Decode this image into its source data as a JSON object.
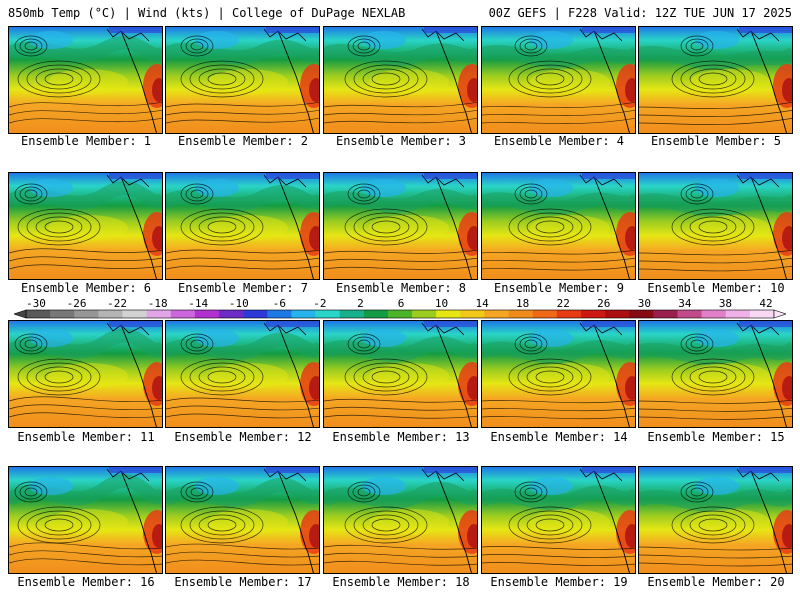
{
  "header": {
    "left": "850mb Temp (°C) | Wind (kts) | College of DuPage NEXLAB",
    "right": "00Z GEFS | F228 Valid: 12Z TUE JUN 17 2025"
  },
  "panels": [
    {
      "label": "Ensemble Member: 1"
    },
    {
      "label": "Ensemble Member: 2"
    },
    {
      "label": "Ensemble Member: 3"
    },
    {
      "label": "Ensemble Member: 4"
    },
    {
      "label": "Ensemble Member: 5"
    },
    {
      "label": "Ensemble Member: 6"
    },
    {
      "label": "Ensemble Member: 7"
    },
    {
      "label": "Ensemble Member: 8"
    },
    {
      "label": "Ensemble Member: 9"
    },
    {
      "label": "Ensemble Member: 10"
    },
    {
      "label": "Ensemble Member: 11"
    },
    {
      "label": "Ensemble Member: 12"
    },
    {
      "label": "Ensemble Member: 13"
    },
    {
      "label": "Ensemble Member: 14"
    },
    {
      "label": "Ensemble Member: 15"
    },
    {
      "label": "Ensemble Member: 16"
    },
    {
      "label": "Ensemble Member: 17"
    },
    {
      "label": "Ensemble Member: 18"
    },
    {
      "label": "Ensemble Member: 19"
    },
    {
      "label": "Ensemble Member: 20"
    }
  ],
  "colorbar": {
    "ticks": [
      "-30",
      "-26",
      "-22",
      "-18",
      "-14",
      "-10",
      "-6",
      "-2",
      "2",
      "6",
      "10",
      "14",
      "18",
      "22",
      "26",
      "30",
      "34",
      "38",
      "42"
    ],
    "colors": [
      "#5a5a5a",
      "#787878",
      "#969696",
      "#b4b4b4",
      "#d2d2d2",
      "#e2a6e8",
      "#cc66dd",
      "#b030d0",
      "#6a2bc6",
      "#2d3ad8",
      "#1e78e6",
      "#27b4ec",
      "#2ad4c8",
      "#19b08c",
      "#139c44",
      "#4cb428",
      "#9ccc20",
      "#e6e614",
      "#f2c81a",
      "#f5a623",
      "#f08c1c",
      "#ee6a16",
      "#e63c14",
      "#cc1a12",
      "#aa0e10",
      "#880a14",
      "#9a1e4e",
      "#c04a8a",
      "#e080c8",
      "#f0b0e8",
      "#f8d8f4"
    ]
  }
}
